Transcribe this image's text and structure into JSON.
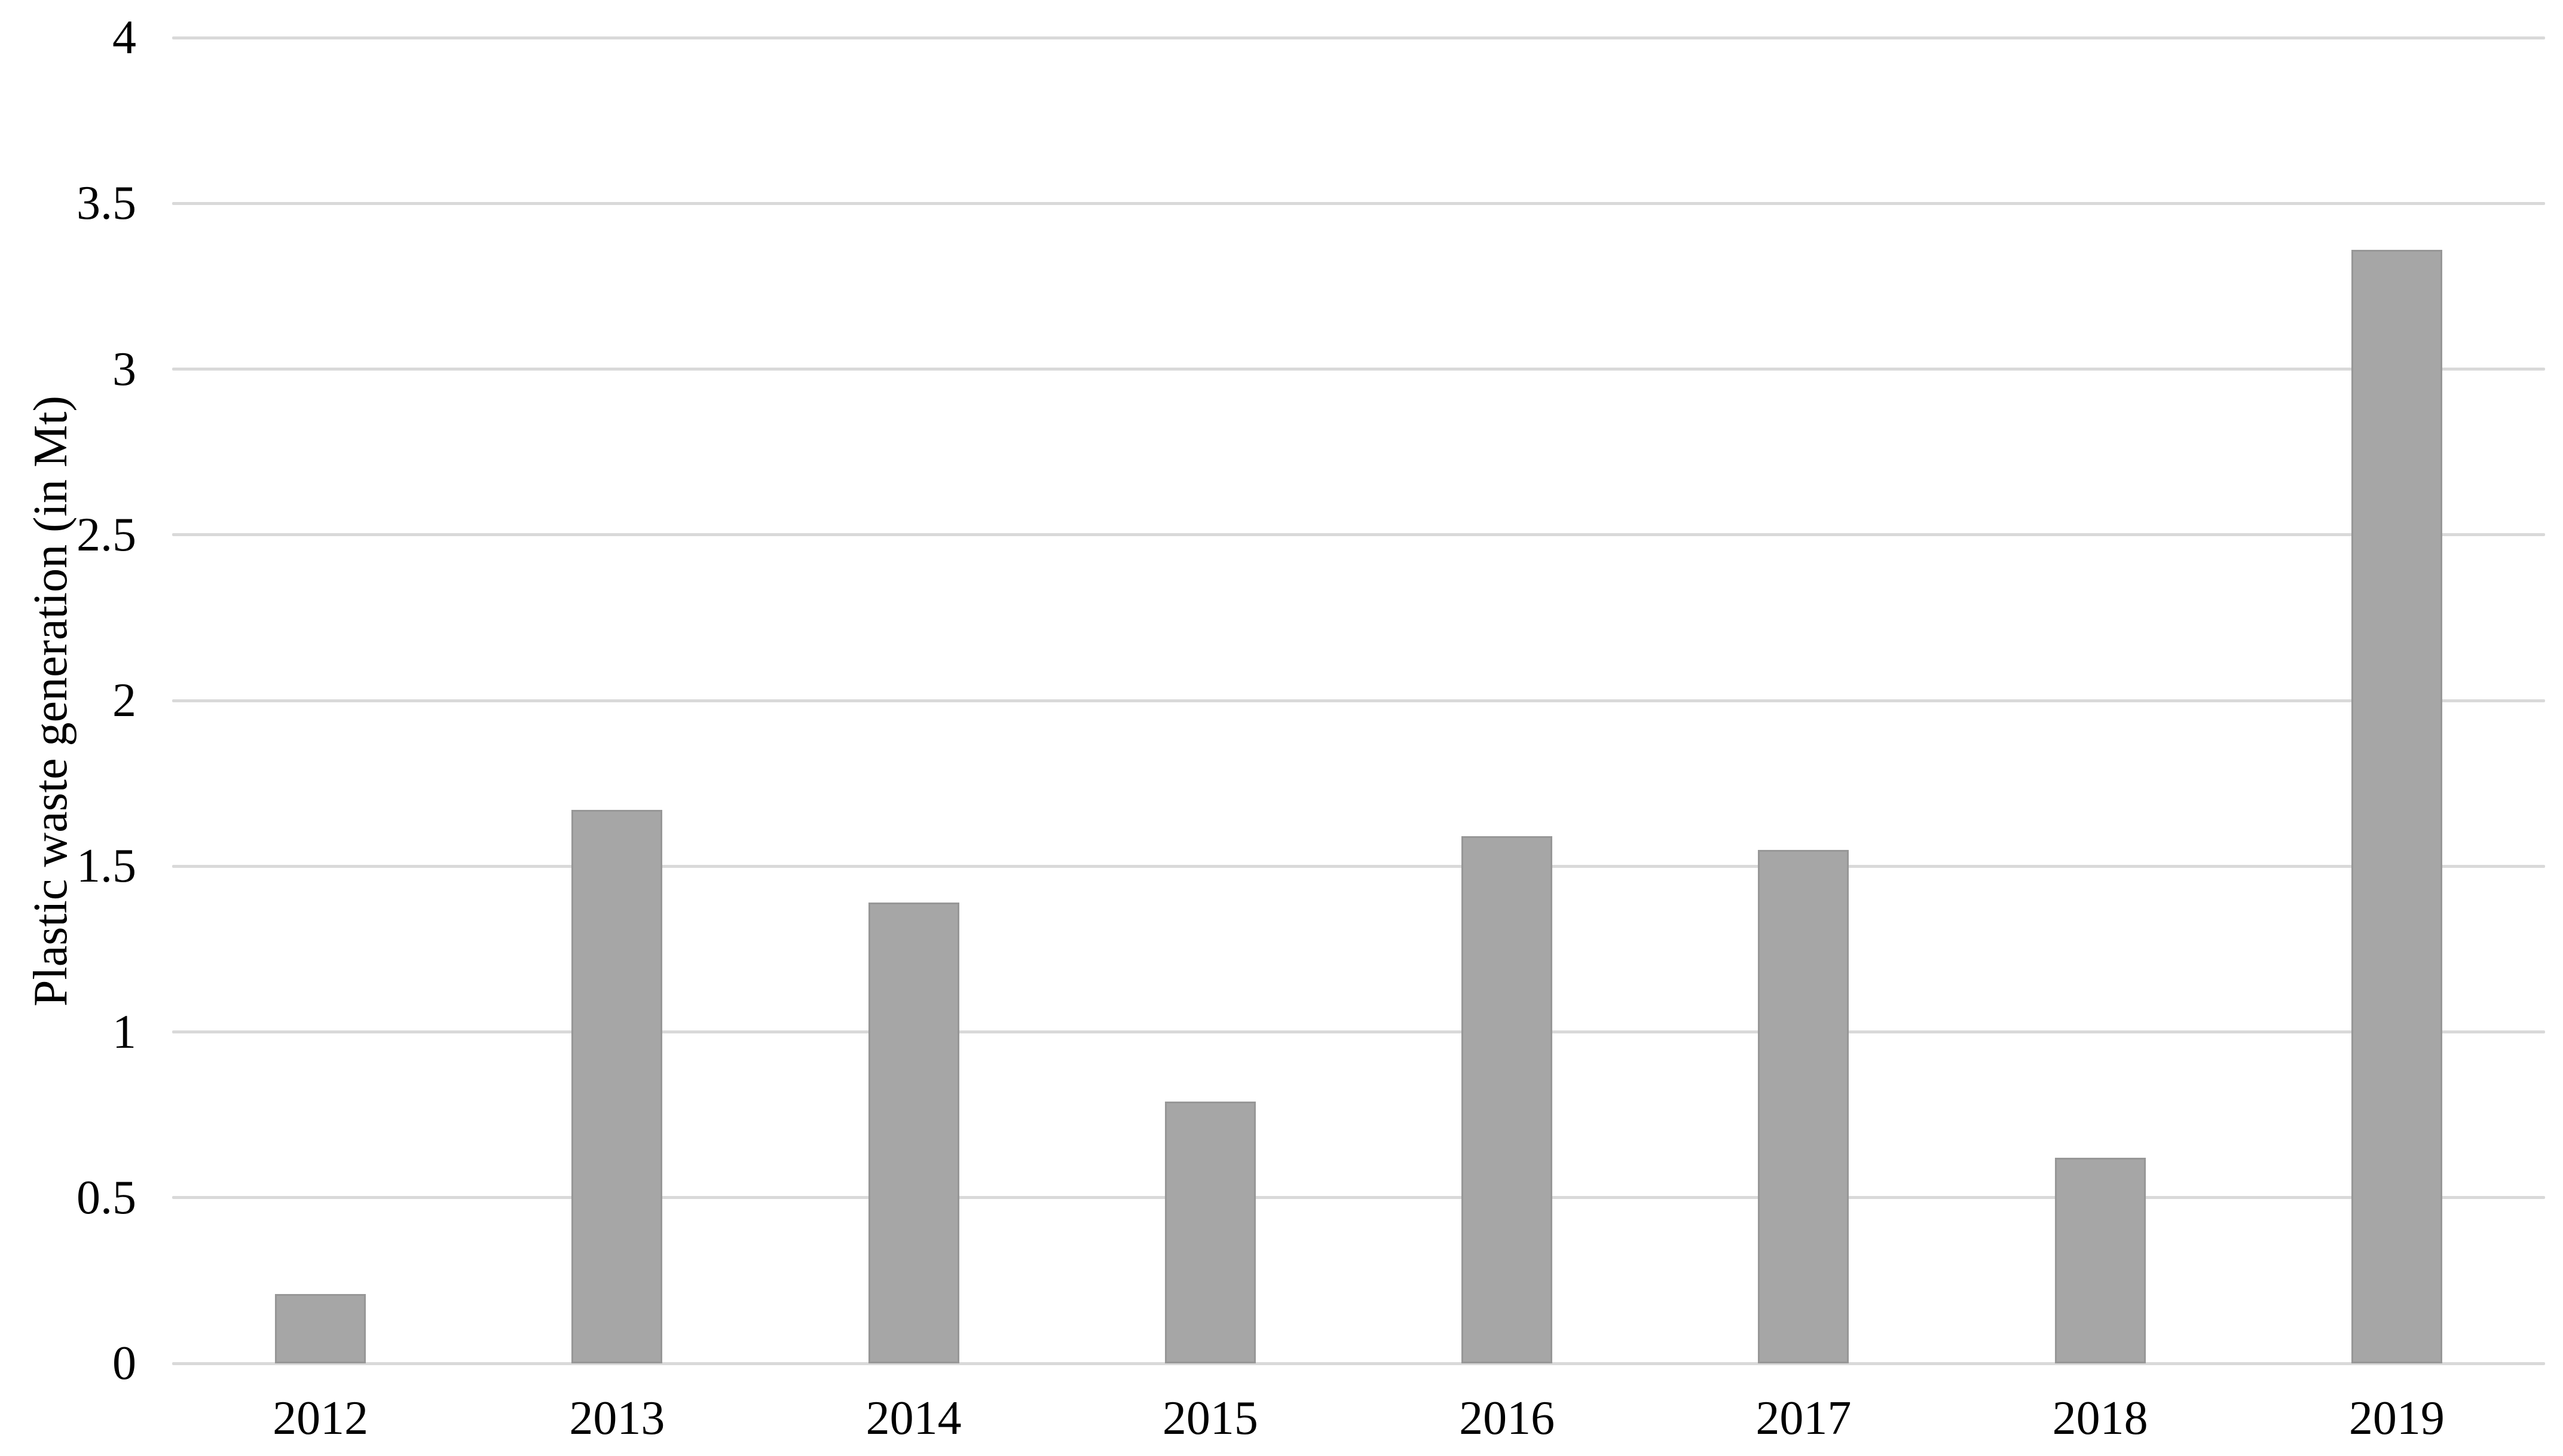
{
  "chart_data": {
    "type": "bar",
    "title": "",
    "categories": [
      "2012",
      "2013",
      "2014",
      "2015",
      "2016",
      "2017",
      "2018",
      "2019"
    ],
    "values": [
      0.21,
      1.67,
      1.39,
      0.79,
      1.59,
      1.55,
      0.62,
      3.36
    ],
    "xlabel": "",
    "ylabel": "Plastic waste generation (in Mt)",
    "ylim": [
      0,
      4
    ],
    "ytick_step": 0.5,
    "ytick_labels": [
      "0",
      "0.5",
      "1",
      "1.5",
      "2",
      "2.5",
      "3",
      "3.5",
      "4"
    ],
    "grid": "horizontal-only",
    "legend": "none",
    "colors": {
      "bar_fill": "#a6a6a6",
      "bar_border": "#979797",
      "gridline": "#d9d9d9",
      "text": "#000000",
      "background": "#ffffff"
    }
  },
  "layout_note": "single bar series, no chart title, no legend, serif axis text"
}
